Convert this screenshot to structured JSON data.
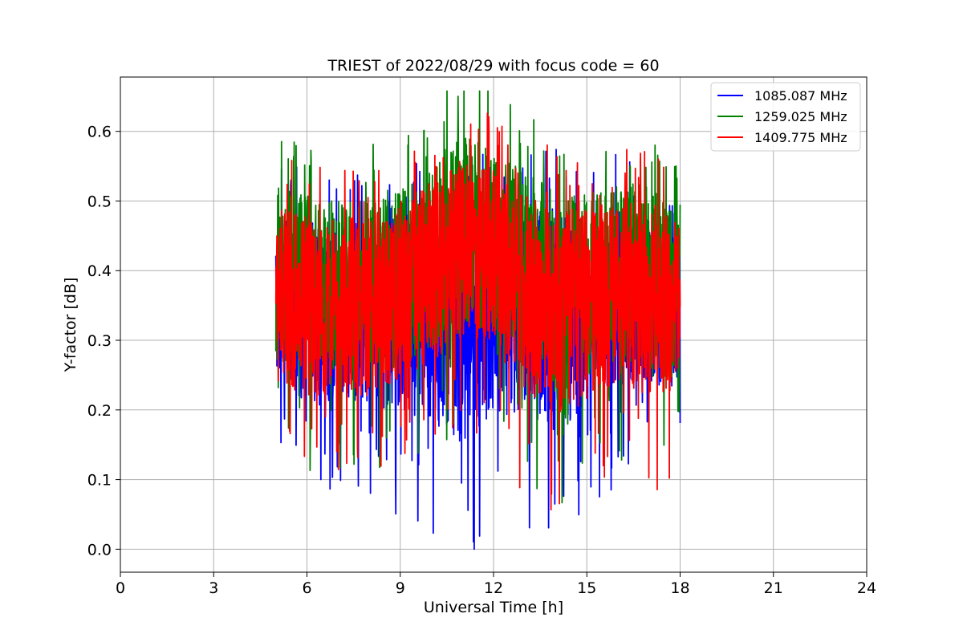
{
  "chart_data": {
    "type": "line",
    "title": "TRIEST of 2022/08/29 with focus code = 60",
    "xlabel": "Universal Time [h]",
    "ylabel": "Y-factor [dB]",
    "xlim": [
      0,
      24
    ],
    "ylim": [
      -0.033,
      0.678
    ],
    "xticks": [
      0,
      3,
      6,
      9,
      12,
      15,
      18,
      21,
      24
    ],
    "yticks": [
      0.0,
      0.1,
      0.2,
      0.3,
      0.4,
      0.5,
      0.6
    ],
    "ytick_labels": [
      "0.0",
      "0.1",
      "0.2",
      "0.3",
      "0.4",
      "0.5",
      "0.6"
    ],
    "grid": true,
    "legend_position": "top-right",
    "x_range": [
      5.0,
      18.0
    ],
    "series": [
      {
        "name": "1085.087 MHz",
        "color": "#0000ff",
        "envelope": {
          "x": [
            5,
            6,
            7,
            8,
            9,
            10,
            11,
            12,
            13,
            14,
            15,
            16,
            17,
            18
          ],
          "mean": [
            0.37,
            0.34,
            0.33,
            0.33,
            0.34,
            0.33,
            0.31,
            0.34,
            0.34,
            0.33,
            0.34,
            0.36,
            0.36,
            0.34
          ],
          "amplitude": [
            0.12,
            0.13,
            0.13,
            0.13,
            0.14,
            0.15,
            0.16,
            0.15,
            0.15,
            0.16,
            0.14,
            0.13,
            0.12,
            0.12
          ]
        }
      },
      {
        "name": "1259.025 MHz",
        "color": "#008000",
        "envelope": {
          "x": [
            5,
            6,
            7,
            8,
            9,
            10,
            11,
            12,
            13,
            14,
            15,
            16,
            17,
            18
          ],
          "mean": [
            0.39,
            0.38,
            0.38,
            0.38,
            0.39,
            0.42,
            0.46,
            0.45,
            0.4,
            0.37,
            0.38,
            0.4,
            0.38,
            0.36
          ],
          "amplitude": [
            0.13,
            0.13,
            0.13,
            0.13,
            0.13,
            0.13,
            0.15,
            0.13,
            0.14,
            0.15,
            0.13,
            0.13,
            0.14,
            0.12
          ]
        }
      },
      {
        "name": "1409.775 MHz",
        "color": "#ff0000",
        "envelope": {
          "x": [
            5,
            6,
            7,
            8,
            9,
            10,
            11,
            12,
            13,
            14,
            15,
            16,
            17,
            18
          ],
          "mean": [
            0.36,
            0.35,
            0.35,
            0.35,
            0.37,
            0.4,
            0.43,
            0.42,
            0.37,
            0.34,
            0.35,
            0.37,
            0.36,
            0.35
          ],
          "amplitude": [
            0.13,
            0.13,
            0.13,
            0.13,
            0.13,
            0.13,
            0.13,
            0.13,
            0.14,
            0.15,
            0.14,
            0.13,
            0.14,
            0.12
          ]
        }
      }
    ]
  }
}
